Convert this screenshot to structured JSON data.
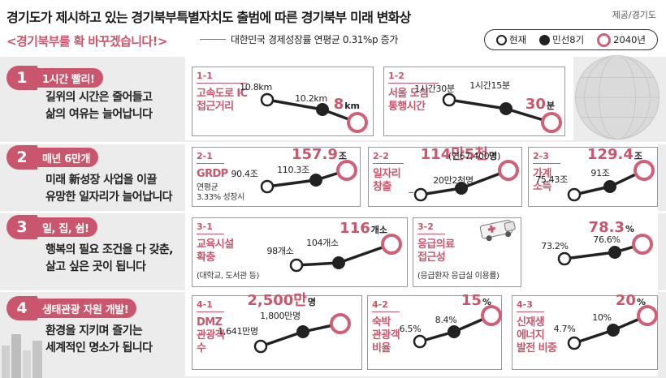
{
  "header": {
    "title": "경기도가 제시하고 있는 경기북부특별자치도 출범에 따른 경기북부 미래 변화상",
    "source": "제공/경기도",
    "subtitle": "<경기북부를 확 바꾸겠습니다!>",
    "subnote": "대한민국 경제성장률 연평균 0.31%p 증가"
  },
  "legend": {
    "now": "현재",
    "mid": "민선8기",
    "future": "2040년"
  },
  "colors": {
    "accent": "#c9566c",
    "future_ring": "#d06078",
    "dark": "#222222"
  },
  "rows": [
    {
      "num": "1",
      "heading": "1시간 빨리!",
      "desc": [
        "길위의 시간은 줄어들고",
        "삶의 여유는 늘어납니다"
      ]
    },
    {
      "num": "2",
      "heading": "매년 6만개",
      "desc": [
        "미래 新성장 사업을 이끌",
        "유망한 일자리가 늘어납니다"
      ]
    },
    {
      "num": "3",
      "heading": "일, 집, 쉼!",
      "desc": [
        "행복의 필요 조건을 다 갖춘,",
        "살고 싶은 곳이 됩니다"
      ]
    },
    {
      "num": "4",
      "heading": "생태관광 자원 개발!",
      "desc": [
        "환경을 지키며 즐기는",
        "세계적인 명소가 됩니다"
      ]
    }
  ],
  "chart_data": [
    {
      "id": "1-1",
      "type": "line",
      "label": [
        "고속도로 IC",
        "접근거리"
      ],
      "sub": [],
      "x": [
        "현재",
        "민선8기",
        "2040년"
      ],
      "values": [
        10.8,
        10.2,
        8
      ],
      "labels": [
        "10.8km",
        "10.2km",
        "8"
      ],
      "unit": "km"
    },
    {
      "id": "1-2",
      "type": "line",
      "label": [
        "서울 도심",
        "통행시간"
      ],
      "sub": [],
      "x": [
        "현재",
        "민선8기",
        "2040년"
      ],
      "values": [
        90,
        75,
        30
      ],
      "labels": [
        "1시간30분",
        "1시간15분",
        "30"
      ],
      "unit": "분"
    },
    {
      "id": "2-1",
      "type": "line",
      "label": [
        "GRDP"
      ],
      "sub": [
        "연평균",
        "3.33% 성장시"
      ],
      "x": [
        "현재",
        "민선8기",
        "2040년"
      ],
      "values": [
        90.4,
        110.3,
        157.9
      ],
      "labels": [
        "90.4조",
        "110.3조",
        "157.9"
      ],
      "unit": "조"
    },
    {
      "id": "2-2",
      "type": "line",
      "label": [
        "일자리",
        "창출"
      ],
      "sub": [],
      "x": [
        "현재",
        "민선8기",
        "2040년"
      ],
      "values": [
        null,
        202000,
        1145000
      ],
      "labels": [
        "_",
        "20만2천명",
        "114만5천"
      ],
      "unit": "명",
      "note": "(연67,400명)"
    },
    {
      "id": "2-3",
      "type": "line",
      "label": [
        "가계",
        "소득"
      ],
      "sub": [],
      "x": [
        "현재",
        "민선8기",
        "2040년"
      ],
      "values": [
        75.43,
        91,
        129.4
      ],
      "labels": [
        "75.43조",
        "91조",
        "129.4"
      ],
      "unit": "조"
    },
    {
      "id": "3-1",
      "type": "line",
      "label": [
        "교육시설",
        "확충"
      ],
      "sub": [
        "(대학교, 도서관 등)"
      ],
      "x": [
        "현재",
        "민선8기",
        "2040년"
      ],
      "values": [
        98,
        104,
        116
      ],
      "labels": [
        "98개소",
        "104개소",
        "116"
      ],
      "unit": "개소"
    },
    {
      "id": "3-2",
      "type": "line",
      "label": [
        "응급의료",
        "접근성"
      ],
      "sub": [
        "(응급환자 응급실 이용률)"
      ],
      "x": [
        "현재",
        "민선8기",
        "2040년"
      ],
      "values": [
        73.2,
        76.6,
        78.3
      ],
      "labels": [
        "73.2%",
        "76.6%",
        "78.3"
      ],
      "unit": "%"
    },
    {
      "id": "4-1",
      "type": "line",
      "label": [
        "DMZ",
        "관광객",
        "수"
      ],
      "sub": [],
      "x": [
        "현재",
        "민선8기",
        "2040년"
      ],
      "values": [
        16410000,
        18000000,
        25000000
      ],
      "labels": [
        "1,641만명",
        "1,800만명",
        "2,500만"
      ],
      "unit": "명"
    },
    {
      "id": "4-2",
      "type": "line",
      "label": [
        "숙박",
        "관광객",
        "비율"
      ],
      "sub": [],
      "x": [
        "현재",
        "민선8기",
        "2040년"
      ],
      "values": [
        6.5,
        8.4,
        15
      ],
      "labels": [
        "6.5%",
        "8.4%",
        "15"
      ],
      "unit": "%"
    },
    {
      "id": "4-3",
      "type": "line",
      "label": [
        "신재생",
        "에너지",
        "발전 비중"
      ],
      "sub": [],
      "x": [
        "현재",
        "민선8기",
        "2040년"
      ],
      "values": [
        4.7,
        10,
        20
      ],
      "labels": [
        "4.7%",
        "10%",
        "20"
      ],
      "unit": "%"
    }
  ],
  "icons": [
    "globe-decoration",
    "city-skyline-decoration",
    "ambulance-icon"
  ]
}
